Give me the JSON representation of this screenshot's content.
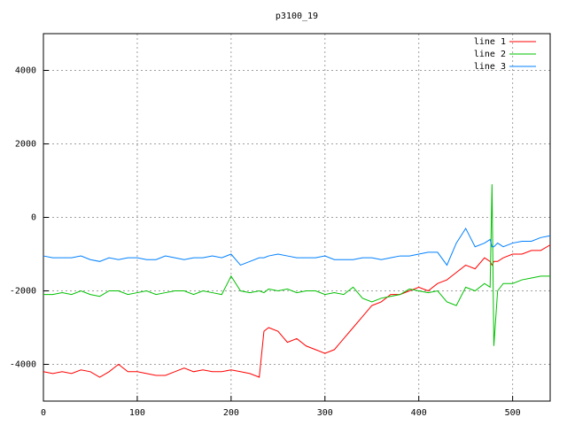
{
  "chart_data": {
    "type": "line",
    "title": "p3100_19",
    "x": [
      0,
      10,
      20,
      30,
      40,
      50,
      60,
      70,
      80,
      90,
      100,
      110,
      120,
      130,
      140,
      150,
      160,
      170,
      180,
      190,
      200,
      210,
      220,
      230,
      235,
      240,
      250,
      260,
      270,
      280,
      290,
      300,
      310,
      320,
      330,
      340,
      350,
      360,
      370,
      380,
      390,
      400,
      410,
      420,
      430,
      440,
      450,
      460,
      470,
      476,
      478,
      480,
      484,
      490,
      500,
      510,
      520,
      530,
      540
    ],
    "series": [
      {
        "name": "line 1",
        "color": "#ff0000",
        "values": [
          -4200,
          -4250,
          -4200,
          -4250,
          -4150,
          -4200,
          -4350,
          -4200,
          -4000,
          -4200,
          -4200,
          -4250,
          -4300,
          -4300,
          -4200,
          -4100,
          -4200,
          -4150,
          -4200,
          -4200,
          -4150,
          -4200,
          -4250,
          -4350,
          -3100,
          -3000,
          -3100,
          -3400,
          -3300,
          -3500,
          -3600,
          -3700,
          -3600,
          -3300,
          -3000,
          -2700,
          -2400,
          -2300,
          -2100,
          -2100,
          -2000,
          -1900,
          -2000,
          -1800,
          -1700,
          -1500,
          -1300,
          -1400,
          -1100,
          -1200,
          -1300,
          -1200,
          -1200,
          -1100,
          -1000,
          -1000,
          -900,
          -900,
          -750
        ]
      },
      {
        "name": "line 2",
        "color": "#00c000",
        "values": [
          -2100,
          -2100,
          -2050,
          -2100,
          -2000,
          -2100,
          -2150,
          -2000,
          -2000,
          -2100,
          -2050,
          -2000,
          -2100,
          -2050,
          -2000,
          -2000,
          -2100,
          -2000,
          -2050,
          -2100,
          -1600,
          -2000,
          -2050,
          -2000,
          -2050,
          -1950,
          -2000,
          -1950,
          -2050,
          -2000,
          -2000,
          -2100,
          -2050,
          -2100,
          -1900,
          -2200,
          -2300,
          -2200,
          -2150,
          -2100,
          -1950,
          -2000,
          -2050,
          -2000,
          -2300,
          -2400,
          -1900,
          -2000,
          -1800,
          -1900,
          900,
          -3500,
          -2000,
          -1800,
          -1800,
          -1700,
          -1650,
          -1600,
          -1600
        ]
      },
      {
        "name": "line 3",
        "color": "#0080ff",
        "values": [
          -1050,
          -1100,
          -1100,
          -1100,
          -1050,
          -1150,
          -1200,
          -1100,
          -1150,
          -1100,
          -1100,
          -1150,
          -1150,
          -1050,
          -1100,
          -1150,
          -1100,
          -1100,
          -1050,
          -1100,
          -1000,
          -1300,
          -1200,
          -1100,
          -1100,
          -1050,
          -1000,
          -1050,
          -1100,
          -1100,
          -1100,
          -1050,
          -1150,
          -1150,
          -1150,
          -1100,
          -1100,
          -1150,
          -1100,
          -1050,
          -1050,
          -1000,
          -950,
          -950,
          -1300,
          -700,
          -300,
          -800,
          -700,
          -600,
          -800,
          -800,
          -700,
          -800,
          -700,
          -650,
          -650,
          -550,
          -500
        ]
      }
    ],
    "xlim": [
      0,
      540
    ],
    "xticks": [
      0,
      100,
      200,
      300,
      400,
      500
    ],
    "ylim": [
      -5000,
      5000
    ],
    "yticks": [
      -4000,
      -2000,
      0,
      2000,
      4000
    ],
    "grid": true,
    "legend": "top-right"
  }
}
